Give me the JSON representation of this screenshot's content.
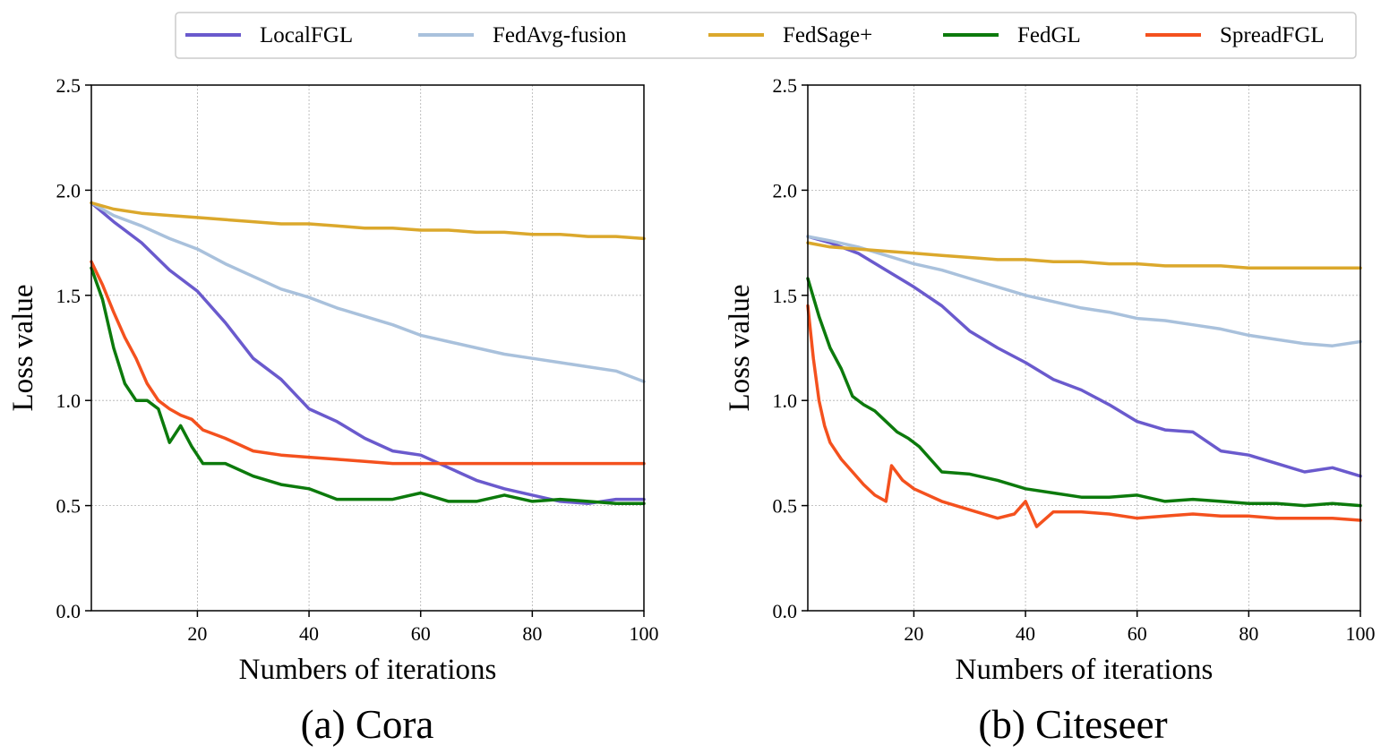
{
  "legend": [
    {
      "name": "LocalFGL",
      "color": "#6a5acd"
    },
    {
      "name": "FedAvg-fusion",
      "color": "#a9c1dc"
    },
    {
      "name": "FedSage+",
      "color": "#dba82c"
    },
    {
      "name": "FedGL",
      "color": "#0c7a0c"
    },
    {
      "name": "SpreadFGL",
      "color": "#f4511e"
    }
  ],
  "chart_data": [
    {
      "type": "line",
      "title": "(a) Cora",
      "xlabel": "Numbers of iterations",
      "ylabel": "Loss value",
      "xlim": [
        1,
        100
      ],
      "ylim": [
        0,
        2.5
      ],
      "xticks": [
        20,
        40,
        60,
        80,
        100
      ],
      "yticks": [
        0.0,
        0.5,
        1.0,
        1.5,
        2.0,
        2.5
      ],
      "xtick_labels": [
        "20",
        "40",
        "60",
        "80",
        "100"
      ],
      "ytick_labels": [
        "0.0",
        "0.5",
        "1.0",
        "1.5",
        "2.0",
        "2.5"
      ],
      "grid": true,
      "series": [
        {
          "name": "LocalFGL",
          "x": [
            1,
            5,
            10,
            15,
            20,
            25,
            30,
            35,
            40,
            45,
            50,
            55,
            60,
            65,
            70,
            75,
            80,
            85,
            90,
            95,
            100
          ],
          "values": [
            1.94,
            1.85,
            1.75,
            1.62,
            1.52,
            1.37,
            1.2,
            1.1,
            0.96,
            0.9,
            0.82,
            0.76,
            0.74,
            0.68,
            0.62,
            0.58,
            0.55,
            0.52,
            0.51,
            0.53,
            0.53
          ]
        },
        {
          "name": "FedAvg-fusion",
          "x": [
            1,
            5,
            10,
            15,
            20,
            25,
            30,
            35,
            40,
            45,
            50,
            55,
            60,
            65,
            70,
            75,
            80,
            85,
            90,
            95,
            100
          ],
          "values": [
            1.94,
            1.88,
            1.83,
            1.77,
            1.72,
            1.65,
            1.59,
            1.53,
            1.49,
            1.44,
            1.4,
            1.36,
            1.31,
            1.28,
            1.25,
            1.22,
            1.2,
            1.18,
            1.16,
            1.14,
            1.09
          ]
        },
        {
          "name": "FedSage+",
          "x": [
            1,
            5,
            10,
            15,
            20,
            25,
            30,
            35,
            40,
            45,
            50,
            55,
            60,
            65,
            70,
            75,
            80,
            85,
            90,
            95,
            100
          ],
          "values": [
            1.94,
            1.91,
            1.89,
            1.88,
            1.87,
            1.86,
            1.85,
            1.84,
            1.84,
            1.83,
            1.82,
            1.82,
            1.81,
            1.81,
            1.8,
            1.8,
            1.79,
            1.79,
            1.78,
            1.78,
            1.77
          ]
        },
        {
          "name": "FedGL",
          "x": [
            1,
            3,
            5,
            7,
            9,
            11,
            13,
            15,
            17,
            19,
            21,
            25,
            30,
            35,
            40,
            45,
            50,
            55,
            60,
            65,
            70,
            75,
            80,
            85,
            90,
            95,
            100
          ],
          "values": [
            1.63,
            1.48,
            1.25,
            1.08,
            1.0,
            1.0,
            0.96,
            0.8,
            0.88,
            0.78,
            0.7,
            0.7,
            0.64,
            0.6,
            0.58,
            0.53,
            0.53,
            0.53,
            0.56,
            0.52,
            0.52,
            0.55,
            0.52,
            0.53,
            0.52,
            0.51,
            0.51
          ]
        },
        {
          "name": "SpreadFGL",
          "x": [
            1,
            3,
            5,
            7,
            9,
            11,
            13,
            15,
            17,
            19,
            21,
            25,
            30,
            35,
            40,
            45,
            50,
            55,
            60,
            65,
            70,
            75,
            80,
            85,
            90,
            95,
            100
          ],
          "values": [
            1.66,
            1.55,
            1.42,
            1.3,
            1.2,
            1.08,
            1.0,
            0.96,
            0.93,
            0.91,
            0.86,
            0.82,
            0.76,
            0.74,
            0.73,
            0.72,
            0.71,
            0.7,
            0.7,
            0.7,
            0.7,
            0.7,
            0.7,
            0.7,
            0.7,
            0.7,
            0.7
          ]
        }
      ]
    },
    {
      "type": "line",
      "title": "(b) Citeseer",
      "xlabel": "Numbers of iterations",
      "ylabel": "Loss value",
      "xlim": [
        1,
        100
      ],
      "ylim": [
        0,
        2.5
      ],
      "xticks": [
        20,
        40,
        60,
        80,
        100
      ],
      "yticks": [
        0.0,
        0.5,
        1.0,
        1.5,
        2.0,
        2.5
      ],
      "xtick_labels": [
        "20",
        "40",
        "60",
        "80",
        "100"
      ],
      "ytick_labels": [
        "0.0",
        "0.5",
        "1.0",
        "1.5",
        "2.0",
        "2.5"
      ],
      "grid": true,
      "series": [
        {
          "name": "LocalFGL",
          "x": [
            1,
            5,
            10,
            15,
            20,
            25,
            30,
            35,
            40,
            45,
            50,
            55,
            60,
            65,
            70,
            75,
            80,
            85,
            90,
            95,
            100
          ],
          "values": [
            1.78,
            1.75,
            1.7,
            1.62,
            1.54,
            1.45,
            1.33,
            1.25,
            1.18,
            1.1,
            1.05,
            0.98,
            0.9,
            0.86,
            0.85,
            0.76,
            0.74,
            0.7,
            0.66,
            0.68,
            0.64
          ]
        },
        {
          "name": "FedAvg-fusion",
          "x": [
            1,
            5,
            10,
            15,
            20,
            25,
            30,
            35,
            40,
            45,
            50,
            55,
            60,
            65,
            70,
            75,
            80,
            85,
            90,
            95,
            100
          ],
          "values": [
            1.78,
            1.76,
            1.73,
            1.69,
            1.65,
            1.62,
            1.58,
            1.54,
            1.5,
            1.47,
            1.44,
            1.42,
            1.39,
            1.38,
            1.36,
            1.34,
            1.31,
            1.29,
            1.27,
            1.26,
            1.28
          ]
        },
        {
          "name": "FedSage+",
          "x": [
            1,
            5,
            10,
            15,
            20,
            25,
            30,
            35,
            40,
            45,
            50,
            55,
            60,
            65,
            70,
            75,
            80,
            85,
            90,
            95,
            100
          ],
          "values": [
            1.75,
            1.73,
            1.72,
            1.71,
            1.7,
            1.69,
            1.68,
            1.67,
            1.67,
            1.66,
            1.66,
            1.65,
            1.65,
            1.64,
            1.64,
            1.64,
            1.63,
            1.63,
            1.63,
            1.63,
            1.63
          ]
        },
        {
          "name": "FedGL",
          "x": [
            1,
            3,
            5,
            7,
            9,
            11,
            13,
            15,
            17,
            19,
            21,
            25,
            30,
            35,
            40,
            45,
            50,
            55,
            60,
            65,
            70,
            75,
            80,
            85,
            90,
            95,
            100
          ],
          "values": [
            1.58,
            1.4,
            1.25,
            1.15,
            1.02,
            0.98,
            0.95,
            0.9,
            0.85,
            0.82,
            0.78,
            0.66,
            0.65,
            0.62,
            0.58,
            0.56,
            0.54,
            0.54,
            0.55,
            0.52,
            0.53,
            0.52,
            0.51,
            0.51,
            0.5,
            0.51,
            0.5
          ]
        },
        {
          "name": "SpreadFGL",
          "x": [
            1,
            2,
            3,
            4,
            5,
            7,
            9,
            11,
            13,
            15,
            16,
            18,
            20,
            25,
            30,
            35,
            38,
            40,
            42,
            45,
            50,
            55,
            60,
            65,
            70,
            75,
            80,
            85,
            90,
            95,
            100
          ],
          "values": [
            1.45,
            1.2,
            1.0,
            0.88,
            0.8,
            0.72,
            0.66,
            0.6,
            0.55,
            0.52,
            0.69,
            0.62,
            0.58,
            0.52,
            0.48,
            0.44,
            0.46,
            0.52,
            0.4,
            0.47,
            0.47,
            0.46,
            0.44,
            0.45,
            0.46,
            0.45,
            0.45,
            0.44,
            0.44,
            0.44,
            0.43
          ]
        }
      ]
    }
  ]
}
